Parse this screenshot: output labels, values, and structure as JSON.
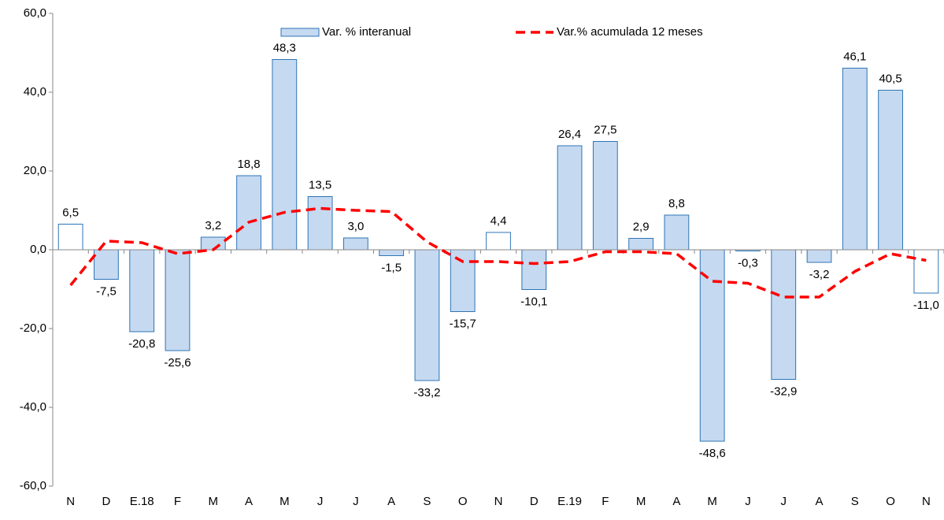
{
  "chart_data": {
    "type": "bar-line",
    "categories": [
      "N",
      "D",
      "E.18",
      "F",
      "M",
      "A",
      "M",
      "J",
      "J",
      "A",
      "S",
      "O",
      "N",
      "D",
      "E.19",
      "F",
      "M",
      "A",
      "M",
      "J",
      "J",
      "A",
      "S",
      "O",
      "N"
    ],
    "series": [
      {
        "name": "Var. % interanual",
        "type": "bar",
        "color": "#c5d9f1",
        "edge_color": "#2e75b6",
        "colors": [
          "#ffffff",
          "#c5d9f1",
          "#c5d9f1",
          "#c5d9f1",
          "#c5d9f1",
          "#c5d9f1",
          "#c5d9f1",
          "#c5d9f1",
          "#c5d9f1",
          "#c5d9f1",
          "#c5d9f1",
          "#c5d9f1",
          "#ffffff",
          "#c5d9f1",
          "#c5d9f1",
          "#c5d9f1",
          "#c5d9f1",
          "#c5d9f1",
          "#c5d9f1",
          "#c5d9f1",
          "#c5d9f1",
          "#c5d9f1",
          "#c5d9f1",
          "#c5d9f1",
          "#ffffff"
        ],
        "values": [
          6.5,
          -7.5,
          -20.8,
          -25.6,
          3.2,
          18.8,
          48.3,
          13.5,
          3.0,
          -1.5,
          -33.2,
          -15.7,
          4.4,
          -10.1,
          26.4,
          27.5,
          2.9,
          8.8,
          -48.6,
          -0.3,
          -32.9,
          -3.2,
          46.1,
          40.5,
          -11.0
        ],
        "value_labels": [
          "6,5",
          "-7,5",
          "-20,8",
          "-25,6",
          "3,2",
          "18,8",
          "48,3",
          "13,5",
          "3,0",
          "-1,5",
          "-33,2",
          "-15,7",
          "4,4",
          "-10,1",
          "26,4",
          "27,5",
          "2,9",
          "8,8",
          "-48,6",
          "-0,3",
          "-32,9",
          "-3,2",
          "46,1",
          "40,5",
          "-11,0"
        ]
      },
      {
        "name": "Var.% acumulada 12 meses",
        "type": "line",
        "color": "#ff0000",
        "dashed": true,
        "values": [
          -9,
          2.2,
          1.8,
          -1,
          0,
          7,
          9.5,
          10.5,
          10,
          9.7,
          2,
          -3,
          -3,
          -3.5,
          -3,
          -0.5,
          -0.5,
          -1,
          -8,
          -8.5,
          -12,
          -12,
          -5.5,
          -1,
          -2.7
        ]
      }
    ],
    "ylim": [
      -60,
      60
    ],
    "yticks": [
      {
        "value": -60,
        "label": "-60,0"
      },
      {
        "value": -40,
        "label": "-40,0"
      },
      {
        "value": -20,
        "label": "-20,0"
      },
      {
        "value": 0,
        "label": "0,0"
      },
      {
        "value": 20,
        "label": "20,0"
      },
      {
        "value": 40,
        "label": "40,0"
      },
      {
        "value": 60,
        "label": "60,0"
      }
    ],
    "legend": "top"
  }
}
